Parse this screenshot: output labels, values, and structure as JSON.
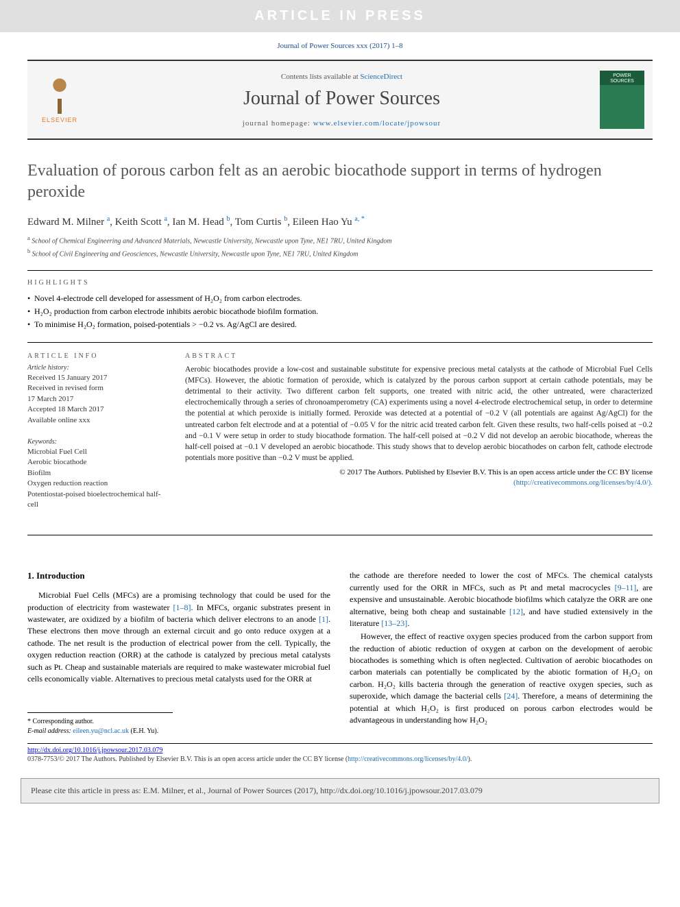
{
  "watermark": "ARTICLE IN PRESS",
  "citation_header": "Journal of Power Sources xxx (2017) 1–8",
  "header": {
    "contents_prefix": "Contents lists available at ",
    "contents_link": "ScienceDirect",
    "journal_name": "Journal of Power Sources",
    "homepage_prefix": "journal homepage: ",
    "homepage_link": "www.elsevier.com/locate/jpowsour",
    "publisher": "ELSEVIER",
    "cover_text": "POWER SOURCES"
  },
  "title": "Evaluation of porous carbon felt as an aerobic biocathode support in terms of hydrogen peroxide",
  "authors_html": "Edward M. Milner <sup>a</sup>, Keith Scott <sup>a</sup>, Ian M. Head <sup>b</sup>, Tom Curtis <sup>b</sup>, Eileen Hao Yu <sup>a, *</sup>",
  "affiliations": [
    "a School of Chemical Engineering and Advanced Materials, Newcastle University, Newcastle upon Tyne, NE1 7RU, United Kingdom",
    "b School of Civil Engineering and Geosciences, Newcastle University, Newcastle upon Tyne, NE1 7RU, United Kingdom"
  ],
  "highlights_label": "HIGHLIGHTS",
  "highlights": [
    "Novel 4-electrode cell developed for assessment of H₂O₂ from carbon electrodes.",
    "H₂O₂ production from carbon electrode inhibits aerobic biocathode biofilm formation.",
    "To minimise H₂O₂ formation, poised-potentials > −0.2 vs. Ag/AgCl are desired."
  ],
  "article_info": {
    "label": "ARTICLE INFO",
    "history_label": "Article history:",
    "history": [
      "Received 15 January 2017",
      "Received in revised form",
      "17 March 2017",
      "Accepted 18 March 2017",
      "Available online xxx"
    ],
    "keywords_label": "Keywords:",
    "keywords": [
      "Microbial Fuel Cell",
      "Aerobic biocathode",
      "Biofilm",
      "Oxygen reduction reaction",
      "Potentiostat-poised bioelectrochemical half-cell"
    ]
  },
  "abstract": {
    "label": "ABSTRACT",
    "text": "Aerobic biocathodes provide a low-cost and sustainable substitute for expensive precious metal catalysts at the cathode of Microbial Fuel Cells (MFCs). However, the abiotic formation of peroxide, which is catalyzed by the porous carbon support at certain cathode potentials, may be detrimental to their activity. Two different carbon felt supports, one treated with nitric acid, the other untreated, were characterized electrochemically through a series of chronoamperometry (CA) experiments using a novel 4-electrode electrochemical setup, in order to determine the potential at which peroxide is initially formed. Peroxide was detected at a potential of −0.2 V (all potentials are against Ag/AgCl) for the untreated carbon felt electrode and at a potential of −0.05 V for the nitric acid treated carbon felt. Given these results, two half-cells poised at −0.2 and −0.1 V were setup in order to study biocathode formation. The half-cell poised at −0.2 V did not develop an aerobic biocathode, whereas the half-cell poised at −0.1 V developed an aerobic biocathode. This study shows that to develop aerobic biocathodes on carbon felt, cathode electrode potentials more positive than −0.2 V must be applied.",
    "copyright": "© 2017 The Authors. Published by Elsevier B.V. This is an open access article under the CC BY license",
    "license_link": "(http://creativecommons.org/licenses/by/4.0/)."
  },
  "intro": {
    "heading": "1. Introduction",
    "p1_a": "Microbial Fuel Cells (MFCs) are a promising technology that could be used for the production of electricity from wastewater ",
    "p1_ref1": "[1–8]",
    "p1_b": ". In MFCs, organic substrates present in wastewater, are oxidized by a biofilm of bacteria which deliver electrons to an anode ",
    "p1_ref2": "[1]",
    "p1_c": ". These electrons then move through an external circuit and go onto reduce oxygen at a cathode. The net result is the production of electrical power from the cell. Typically, the oxygen reduction reaction (ORR) at the cathode is catalyzed by precious metal catalysts such as Pt. Cheap and sustainable materials are required to make wastewater microbial fuel cells economically viable. Alternatives to precious metal catalysts used for the ORR at",
    "p2_a": "the cathode are therefore needed to lower the cost of MFCs. The chemical catalysts currently used for the ORR in MFCs, such as Pt and metal macrocycles ",
    "p2_ref1": "[9–11]",
    "p2_b": ", are expensive and unsustainable. Aerobic biocathode biofilms which catalyze the ORR are one alternative, being both cheap and sustainable ",
    "p2_ref2": "[12]",
    "p2_c": ", and have studied extensively in the literature ",
    "p2_ref3": "[13–23]",
    "p2_d": ".",
    "p3_a": "However, the effect of reactive oxygen species produced from the carbon support from the reduction of abiotic reduction of oxygen at carbon on the development of aerobic biocathodes is something which is often neglected. Cultivation of aerobic biocathodes on carbon materials can potentially be complicated by the abiotic formation of H₂O₂ on carbon. H₂O₂ kills bacteria through the generation of reactive oxygen species, such as superoxide, which damage the bacterial cells ",
    "p3_ref1": "[24]",
    "p3_b": ". Therefore, a means of determining the potential at which H₂O₂ is first produced on porous carbon electrodes would be advantageous in understanding how H₂O₂"
  },
  "corresponding": {
    "label": "* Corresponding author.",
    "email_label": "E-mail address: ",
    "email": "eileen.yu@ncl.ac.uk",
    "email_suffix": " (E.H. Yu)."
  },
  "footer": {
    "doi": "http://dx.doi.org/10.1016/j.jpowsour.2017.03.079",
    "issn_line": "0378-7753/© 2017 The Authors. Published by Elsevier B.V. This is an open access article under the CC BY license (",
    "issn_link": "http://creativecommons.org/licenses/by/4.0/",
    "issn_close": ")."
  },
  "cite_box": "Please cite this article in press as: E.M. Milner, et al., Journal of Power Sources (2017), http://dx.doi.org/10.1016/j.jpowsour.2017.03.079",
  "colors": {
    "link": "#1a6db5",
    "elsevier_orange": "#e87722",
    "cover_green": "#1a5c3a",
    "watermark_bg": "#e0e0e0",
    "header_bg": "#f5f5f5"
  }
}
